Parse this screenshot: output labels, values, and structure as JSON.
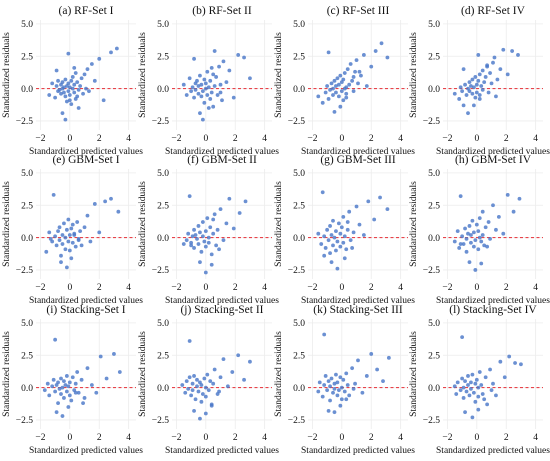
{
  "figure": {
    "shared": {
      "xlabel": "Standardized predicted values",
      "ylabel": "Standardized residuals",
      "xticks": [
        -2,
        0,
        2,
        4
      ],
      "yticks": [
        -2.5,
        0.0,
        2.5,
        5.0
      ],
      "ytick_labels": [
        "−2.5",
        "0.0",
        "2.5",
        "5.0"
      ],
      "xtick_labels": [
        "−2",
        "0",
        "2",
        "4"
      ],
      "xlim": [
        -2.3,
        4.5
      ],
      "ylim": [
        -3.2,
        5.3
      ],
      "point_color": "#4a78c8",
      "reference_line_color": "#e8434a"
    }
  },
  "chart_data": [
    {
      "type": "scatter",
      "title": "(a) RF-Set I",
      "xlabel": "Standardized predicted values",
      "ylabel": "Standardized residuals",
      "xlim": [
        -2.3,
        4.5
      ],
      "ylim": [
        -3.2,
        5.3
      ],
      "reference_line": 0,
      "x": [
        -1.4,
        -1.2,
        -1.0,
        -0.9,
        -0.8,
        -0.8,
        -0.7,
        -0.6,
        -0.6,
        -0.5,
        -0.5,
        -0.4,
        -0.4,
        -0.3,
        -0.3,
        -0.2,
        -0.2,
        -0.1,
        -0.1,
        0.0,
        0.0,
        0.1,
        0.1,
        0.2,
        0.2,
        0.3,
        0.3,
        0.4,
        0.4,
        0.5,
        0.6,
        0.7,
        0.8,
        0.9,
        1.0,
        1.1,
        1.2,
        1.3,
        1.5,
        1.7,
        2.0,
        2.3,
        2.8,
        3.2,
        -0.5,
        -0.3,
        0.0,
        0.3,
        0.6,
        -0.9,
        -0.1,
        0.5
      ],
      "y": [
        -0.5,
        0.4,
        -0.7,
        0.2,
        -0.2,
        0.6,
        -0.1,
        0.3,
        -0.4,
        0.0,
        0.5,
        -0.3,
        0.1,
        0.7,
        -0.6,
        0.2,
        -1.0,
        0.4,
        -0.2,
        0.1,
        -0.5,
        0.6,
        -1.2,
        0.0,
        0.9,
        -0.3,
        0.3,
        1.2,
        -0.8,
        0.5,
        -1.5,
        0.2,
        0.8,
        -0.4,
        1.1,
        0.0,
        1.5,
        -0.2,
        1.9,
        0.6,
        2.3,
        -0.9,
        2.8,
        3.1,
        -1.9,
        -2.4,
        -0.9,
        1.6,
        -0.1,
        1.4,
        2.7,
        -0.6
      ]
    },
    {
      "type": "scatter",
      "title": "(b) RF-Set II",
      "xlabel": "Standardized predicted values",
      "ylabel": "Standardized residuals",
      "xlim": [
        -2.3,
        4.5
      ],
      "ylim": [
        -3.2,
        5.3
      ],
      "reference_line": 0,
      "x": [
        -1.5,
        -1.3,
        -1.1,
        -1.0,
        -0.9,
        -0.8,
        -0.7,
        -0.7,
        -0.6,
        -0.5,
        -0.5,
        -0.4,
        -0.3,
        -0.3,
        -0.2,
        -0.1,
        -0.1,
        0.0,
        0.0,
        0.1,
        0.1,
        0.2,
        0.3,
        0.3,
        0.4,
        0.5,
        0.5,
        0.6,
        0.7,
        0.8,
        0.9,
        1.0,
        1.1,
        1.2,
        1.4,
        1.6,
        1.9,
        2.2,
        2.6,
        3.0,
        -0.4,
        -0.2,
        0.2,
        0.6,
        1.0,
        -0.8,
        0.4
      ],
      "y": [
        0.3,
        -0.5,
        0.8,
        -0.2,
        0.1,
        -0.7,
        0.4,
        -0.1,
        0.6,
        -0.4,
        0.2,
        1.0,
        -0.6,
        0.3,
        -0.2,
        0.7,
        -1.1,
        0.0,
        0.4,
        -0.5,
        1.3,
        0.1,
        -0.8,
        0.6,
        -0.3,
        1.1,
        -1.4,
        0.2,
        0.9,
        -0.5,
        1.7,
        0.3,
        -0.9,
        2.1,
        0.5,
        1.4,
        -0.7,
        2.6,
        2.4,
        0.8,
        -1.9,
        -2.4,
        -1.5,
        2.9,
        -0.3,
        2.3,
        1.6
      ]
    },
    {
      "type": "scatter",
      "title": "(c) RF-Set III",
      "xlabel": "Standardized predicted values",
      "ylabel": "Standardized residuals",
      "xlim": [
        -2.3,
        4.5
      ],
      "ylim": [
        -3.2,
        5.3
      ],
      "reference_line": 0,
      "x": [
        -1.6,
        -1.3,
        -1.1,
        -1.0,
        -0.9,
        -0.8,
        -0.7,
        -0.6,
        -0.6,
        -0.5,
        -0.4,
        -0.4,
        -0.3,
        -0.2,
        -0.2,
        -0.1,
        0.0,
        0.0,
        0.1,
        0.1,
        0.2,
        0.3,
        0.3,
        0.4,
        0.5,
        0.6,
        0.7,
        0.8,
        0.9,
        1.0,
        1.1,
        1.3,
        1.5,
        1.7,
        2.0,
        2.3,
        2.7,
        3.1,
        -0.5,
        -0.1,
        0.3,
        0.8,
        1.2,
        -0.9,
        0.2
      ],
      "y": [
        -0.6,
        -1.1,
        -0.3,
        0.2,
        -0.8,
        -0.1,
        0.4,
        -0.5,
        0.0,
        0.6,
        -0.3,
        0.2,
        0.8,
        -0.6,
        0.3,
        1.0,
        -0.2,
        0.5,
        -0.9,
        0.7,
        1.2,
        0.1,
        -0.4,
        1.5,
        0.3,
        1.9,
        0.6,
        -0.2,
        1.3,
        2.2,
        0.4,
        1.0,
        2.6,
        0.2,
        1.7,
        2.9,
        3.5,
        2.4,
        -1.8,
        -1.4,
        -0.7,
        0.9,
        1.3,
        2.8,
        0.0
      ]
    },
    {
      "type": "scatter",
      "title": "(d) RF-Set IV",
      "xlabel": "Standardized predicted values",
      "ylabel": "Standardized residuals",
      "xlim": [
        -2.3,
        4.5
      ],
      "ylim": [
        -3.2,
        5.3
      ],
      "reference_line": 0,
      "x": [
        -1.5,
        -1.2,
        -1.1,
        -1.0,
        -0.9,
        -0.8,
        -0.7,
        -0.6,
        -0.5,
        -0.5,
        -0.4,
        -0.3,
        -0.3,
        -0.2,
        -0.1,
        -0.1,
        0.0,
        0.0,
        0.1,
        0.2,
        0.2,
        0.3,
        0.4,
        0.4,
        0.5,
        0.6,
        0.7,
        0.8,
        0.9,
        1.0,
        1.1,
        1.2,
        1.4,
        1.6,
        1.8,
        2.1,
        2.4,
        2.8,
        -0.6,
        -0.2,
        0.2,
        0.7,
        -0.9,
        0.1,
        1.3
      ],
      "y": [
        -0.4,
        -0.8,
        0.1,
        -0.2,
        -1.3,
        0.3,
        -0.5,
        0.0,
        0.5,
        -0.2,
        0.2,
        0.7,
        -0.4,
        0.1,
        -0.7,
        0.9,
        0.3,
        -0.3,
        0.6,
        1.1,
        -0.5,
        0.2,
        1.4,
        -0.1,
        0.5,
        0.9,
        1.8,
        -0.3,
        1.2,
        0.4,
        2.0,
        2.4,
        0.7,
        1.5,
        3.0,
        1.1,
        2.9,
        2.6,
        -1.9,
        -1.3,
        -0.8,
        1.7,
        1.5,
        2.6,
        -0.6
      ]
    },
    {
      "type": "scatter",
      "title": "(e) GBM-Set I",
      "xlabel": "Standardized predicted values",
      "ylabel": "Standardized residuals",
      "xlim": [
        -2.3,
        4.5
      ],
      "ylim": [
        -3.2,
        5.3
      ],
      "reference_line": 0,
      "x": [
        -1.6,
        -1.4,
        -1.2,
        -1.1,
        -1.0,
        -0.9,
        -0.8,
        -0.7,
        -0.7,
        -0.6,
        -0.5,
        -0.5,
        -0.4,
        -0.3,
        -0.3,
        -0.2,
        -0.1,
        -0.1,
        0.0,
        0.0,
        0.1,
        0.2,
        0.2,
        0.3,
        0.4,
        0.5,
        0.6,
        0.7,
        0.8,
        1.0,
        1.2,
        1.4,
        1.7,
        2.0,
        2.4,
        2.8,
        3.3,
        -0.6,
        -0.2,
        0.1,
        0.6,
        -1.3,
        0.3
      ],
      "y": [
        -1.1,
        0.4,
        -0.3,
        3.3,
        0.1,
        -0.6,
        0.5,
        -0.2,
        0.8,
        -1.4,
        0.2,
        -0.5,
        1.1,
        0.0,
        -0.9,
        0.6,
        -0.3,
        1.4,
        0.2,
        -1.0,
        0.7,
        -0.4,
        1.0,
        0.3,
        -0.7,
        1.2,
        -0.1,
        0.5,
        -0.6,
        0.8,
        1.7,
        -0.3,
        2.6,
        0.4,
        2.8,
        3.0,
        2.0,
        -1.9,
        -2.3,
        -1.6,
        -0.2,
        -0.1,
        0.2
      ]
    },
    {
      "type": "scatter",
      "title": "(f) GBM-Set II",
      "xlabel": "Standardized predicted values",
      "ylabel": "Standardized residuals",
      "xlim": [
        -2.3,
        4.5
      ],
      "ylim": [
        -3.2,
        5.3
      ],
      "reference_line": 0,
      "x": [
        -1.5,
        -1.3,
        -1.2,
        -1.1,
        -1.0,
        -0.9,
        -0.8,
        -0.8,
        -0.7,
        -0.6,
        -0.5,
        -0.5,
        -0.4,
        -0.3,
        -0.2,
        -0.2,
        -0.1,
        0.0,
        0.0,
        0.1,
        0.2,
        0.2,
        0.3,
        0.4,
        0.5,
        0.6,
        0.7,
        0.8,
        1.0,
        1.2,
        1.4,
        1.6,
        1.9,
        2.3,
        2.7,
        -0.4,
        0.0,
        0.4,
        0.9,
        -1.0,
        0.5
      ],
      "y": [
        -0.5,
        -0.2,
        0.3,
        3.2,
        -0.4,
        0.1,
        0.6,
        -0.8,
        0.2,
        -0.1,
        0.9,
        -0.5,
        0.4,
        -1.1,
        0.1,
        1.2,
        -0.3,
        0.5,
        -0.7,
        1.5,
        0.0,
        -0.4,
        0.8,
        -1.3,
        0.3,
        1.8,
        -0.6,
        0.6,
        2.2,
        -0.2,
        1.1,
        3.0,
        0.7,
        1.9,
        2.8,
        -1.9,
        -2.7,
        -2.1,
        -0.9,
        -0.6,
        1.4
      ]
    },
    {
      "type": "scatter",
      "title": "(g) GBM-Set III",
      "xlabel": "Standardized predicted values",
      "ylabel": "Standardized residuals",
      "xlim": [
        -2.3,
        4.5
      ],
      "ylim": [
        -3.2,
        5.3
      ],
      "reference_line": 0,
      "x": [
        -1.6,
        -1.4,
        -1.3,
        -1.2,
        -1.1,
        -1.0,
        -0.9,
        -0.8,
        -0.8,
        -0.7,
        -0.6,
        -0.6,
        -0.5,
        -0.4,
        -0.4,
        -0.3,
        -0.2,
        -0.1,
        -0.1,
        0.0,
        0.1,
        0.1,
        0.2,
        0.3,
        0.4,
        0.5,
        0.6,
        0.8,
        1.0,
        1.2,
        1.5,
        1.8,
        2.2,
        2.6,
        3.1,
        -0.7,
        -0.3,
        0.2,
        0.7,
        -1.2,
        0.4
      ],
      "y": [
        0.3,
        -0.5,
        3.5,
        0.1,
        -0.8,
        0.6,
        -0.2,
        0.9,
        -1.2,
        0.2,
        -0.6,
        1.3,
        0.0,
        -1.0,
        0.5,
        -0.3,
        1.1,
        -0.7,
        0.3,
        0.8,
        -0.4,
        1.6,
        0.1,
        -0.9,
        0.6,
        2.0,
        -0.2,
        0.4,
        2.4,
        1.0,
        0.2,
        2.8,
        1.4,
        3.1,
        2.2,
        -1.9,
        -2.4,
        -1.6,
        -0.8,
        -1.4,
        1.2
      ]
    },
    {
      "type": "scatter",
      "title": "(h) GBM-Set IV",
      "xlabel": "Standardized predicted values",
      "ylabel": "Standardized residuals",
      "xlim": [
        -2.3,
        4.5
      ],
      "ylim": [
        -3.2,
        5.3
      ],
      "reference_line": 0,
      "x": [
        -1.5,
        -1.3,
        -1.2,
        -1.1,
        -1.0,
        -0.9,
        -0.8,
        -0.7,
        -0.7,
        -0.6,
        -0.5,
        -0.4,
        -0.4,
        -0.3,
        -0.2,
        -0.2,
        -0.1,
        0.0,
        0.1,
        0.1,
        0.2,
        0.3,
        0.4,
        0.4,
        0.5,
        0.6,
        0.8,
        0.9,
        1.1,
        1.3,
        1.5,
        1.8,
        2.1,
        2.5,
        2.9,
        -0.5,
        -0.1,
        0.3,
        0.7,
        -1.1,
        0.2
      ],
      "y": [
        -0.3,
        0.5,
        -0.8,
        3.2,
        0.1,
        -0.5,
        0.7,
        -0.1,
        -1.1,
        0.3,
        0.9,
        -0.4,
        0.2,
        1.3,
        -0.7,
        0.4,
        -0.2,
        1.0,
        -0.9,
        0.5,
        1.5,
        -0.3,
        0.2,
        2.0,
        -0.6,
        0.8,
        1.2,
        -0.1,
        2.5,
        0.6,
        1.6,
        0.3,
        3.3,
        2.0,
        3.0,
        -1.9,
        -2.5,
        -2.0,
        -0.7,
        -0.5,
        0.0
      ]
    },
    {
      "type": "scatter",
      "title": "(i) Stacking-Set I",
      "xlabel": "Standardized predicted values",
      "ylabel": "Standardized residuals",
      "xlim": [
        -2.3,
        4.5
      ],
      "ylim": [
        -3.2,
        5.3
      ],
      "reference_line": 0,
      "x": [
        -1.7,
        -1.5,
        -1.4,
        -1.2,
        -1.1,
        -1.0,
        -0.9,
        -0.8,
        -0.8,
        -0.7,
        -0.6,
        -0.6,
        -0.5,
        -0.4,
        -0.4,
        -0.3,
        -0.2,
        -0.2,
        -0.1,
        0.0,
        0.0,
        0.1,
        0.2,
        0.3,
        0.4,
        0.5,
        0.6,
        0.8,
        1.0,
        1.2,
        1.5,
        1.8,
        2.1,
        2.5,
        3.0,
        3.4,
        -0.9,
        -0.5,
        -0.1,
        0.4,
        0.9,
        -1.0
      ],
      "y": [
        -0.2,
        0.3,
        -0.6,
        0.1,
        0.6,
        -0.3,
        0.2,
        -1.2,
        0.4,
        -0.1,
        0.7,
        -0.5,
        0.0,
        0.5,
        -0.8,
        0.2,
        -0.3,
        0.9,
        0.1,
        -0.6,
        0.4,
        -1.0,
        0.8,
        -0.2,
        0.3,
        1.2,
        -0.4,
        0.6,
        -0.8,
        1.5,
        0.2,
        -0.4,
        2.4,
        0.7,
        2.6,
        1.2,
        -1.9,
        -2.2,
        -1.5,
        -0.4,
        -1.2,
        3.7
      ]
    },
    {
      "type": "scatter",
      "title": "(j) Stacking-Set II",
      "xlabel": "Standardized predicted values",
      "ylabel": "Standardized residuals",
      "xlim": [
        -2.3,
        4.5
      ],
      "ylim": [
        -3.2,
        5.3
      ],
      "reference_line": 0,
      "x": [
        -1.6,
        -1.4,
        -1.3,
        -1.2,
        -1.1,
        -1.0,
        -0.9,
        -0.9,
        -0.8,
        -0.7,
        -0.6,
        -0.6,
        -0.5,
        -0.4,
        -0.3,
        -0.3,
        -0.2,
        -0.1,
        0.0,
        0.0,
        0.1,
        0.2,
        0.3,
        0.4,
        0.5,
        0.6,
        0.8,
        1.0,
        1.2,
        1.5,
        1.8,
        2.2,
        2.6,
        3.0,
        -0.8,
        -0.4,
        0.0,
        0.4,
        0.9,
        -1.1
      ],
      "y": [
        0.2,
        -0.4,
        0.5,
        -0.1,
        0.8,
        -0.6,
        0.3,
        -0.2,
        0.9,
        -0.9,
        0.1,
        0.6,
        -0.3,
        0.4,
        -1.1,
        0.2,
        -0.5,
        0.7,
        0.0,
        -0.7,
        1.0,
        -0.2,
        0.5,
        -1.3,
        0.3,
        1.4,
        -0.5,
        0.8,
        2.2,
        0.1,
        1.2,
        2.5,
        0.6,
        2.0,
        -1.8,
        -2.4,
        -2.0,
        -1.4,
        -0.3,
        3.6
      ]
    },
    {
      "type": "scatter",
      "title": "(k) Stacking-Set III",
      "xlabel": "Standardized predicted values",
      "ylabel": "Standardized residuals",
      "xlim": [
        -2.3,
        4.5
      ],
      "ylim": [
        -3.2,
        5.3
      ],
      "reference_line": 0,
      "x": [
        -1.6,
        -1.5,
        -1.3,
        -1.2,
        -1.1,
        -1.0,
        -0.9,
        -0.8,
        -0.8,
        -0.7,
        -0.6,
        -0.5,
        -0.5,
        -0.4,
        -0.3,
        -0.3,
        -0.2,
        -0.1,
        0.0,
        0.0,
        0.1,
        0.2,
        0.3,
        0.4,
        0.5,
        0.7,
        0.9,
        1.1,
        1.4,
        1.7,
        2.0,
        2.4,
        2.8,
        3.2,
        -0.9,
        -0.5,
        -0.1,
        0.3,
        0.8,
        -1.2
      ],
      "y": [
        -0.3,
        0.4,
        -0.7,
        0.2,
        0.9,
        -0.2,
        0.5,
        -1.0,
        0.1,
        0.7,
        -0.4,
        0.3,
        -0.1,
        1.0,
        -0.6,
        0.4,
        -0.2,
        0.8,
        0.0,
        -0.9,
        0.6,
        -0.3,
        1.1,
        0.2,
        -0.6,
        1.5,
        0.3,
        2.1,
        -0.4,
        0.9,
        2.6,
        1.4,
        0.5,
        2.3,
        -1.8,
        -1.9,
        -1.4,
        -0.9,
        -0.1,
        4.1
      ]
    },
    {
      "type": "scatter",
      "title": "(l) Stacking-Set IV",
      "xlabel": "Standardized predicted values",
      "ylabel": "Standardized residuals",
      "xlim": [
        -2.3,
        4.5
      ],
      "ylim": [
        -3.2,
        5.3
      ],
      "reference_line": 0,
      "x": [
        -1.5,
        -1.4,
        -1.3,
        -1.1,
        -1.0,
        -0.9,
        -0.9,
        -0.8,
        -0.7,
        -0.6,
        -0.6,
        -0.5,
        -0.4,
        -0.4,
        -0.3,
        -0.2,
        -0.1,
        -0.1,
        0.0,
        0.1,
        0.1,
        0.2,
        0.3,
        0.4,
        0.6,
        0.7,
        0.9,
        1.1,
        1.3,
        1.6,
        1.9,
        2.2,
        2.6,
        3.0,
        -0.8,
        -0.3,
        0.1,
        0.5,
        1.0,
        -1.0
      ],
      "y": [
        0.1,
        -0.5,
        0.4,
        -0.2,
        0.7,
        0.0,
        -0.8,
        0.5,
        -0.3,
        0.9,
        0.2,
        -0.6,
        0.4,
        -0.1,
        1.0,
        -0.4,
        0.3,
        -1.1,
        0.6,
        0.0,
        -0.7,
        1.2,
        0.2,
        -0.5,
        0.8,
        -1.3,
        1.4,
        0.3,
        -0.6,
        2.0,
        0.8,
        2.4,
        1.9,
        1.8,
        -1.9,
        -2.3,
        -1.7,
        -0.9,
        -0.2,
        3.9
      ]
    }
  ]
}
